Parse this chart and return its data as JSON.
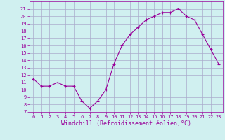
{
  "x": [
    0,
    1,
    2,
    3,
    4,
    5,
    6,
    7,
    8,
    9,
    10,
    11,
    12,
    13,
    14,
    15,
    16,
    17,
    18,
    19,
    20,
    21,
    22,
    23
  ],
  "y": [
    11.5,
    10.5,
    10.5,
    11.0,
    10.5,
    10.5,
    8.5,
    7.5,
    8.5,
    10.0,
    13.5,
    16.0,
    17.5,
    18.5,
    19.5,
    20.0,
    20.5,
    20.5,
    21.0,
    20.0,
    19.5,
    17.5,
    15.5,
    13.5
  ],
  "line_color": "#990099",
  "marker": "+",
  "marker_size": 3,
  "bg_color": "#d0f0f0",
  "grid_color": "#aaaacc",
  "xlabel": "Windchill (Refroidissement éolien,°C)",
  "xlim": [
    -0.5,
    23.5
  ],
  "ylim": [
    7,
    22
  ],
  "yticks": [
    7,
    8,
    9,
    10,
    11,
    12,
    13,
    14,
    15,
    16,
    17,
    18,
    19,
    20,
    21
  ],
  "xticks": [
    0,
    1,
    2,
    3,
    4,
    5,
    6,
    7,
    8,
    9,
    10,
    11,
    12,
    13,
    14,
    15,
    16,
    17,
    18,
    19,
    20,
    21,
    22,
    23
  ],
  "tick_fontsize": 5.0,
  "xlabel_fontsize": 6.0,
  "line_width": 0.8,
  "marker_edge_width": 0.8
}
